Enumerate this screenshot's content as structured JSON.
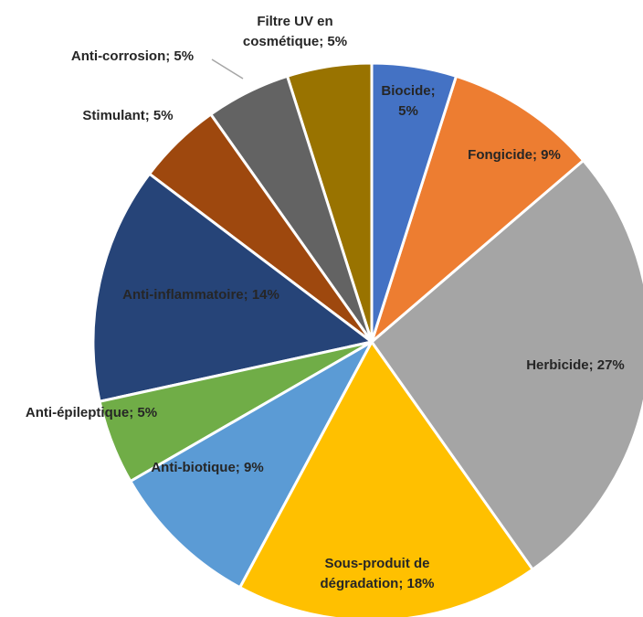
{
  "chart_data": {
    "type": "pie",
    "categories": [
      "Biocide; 5%",
      "Fongicide; 9%",
      "Herbicide; 27%",
      "Sous-produit de dégradation; 18%",
      "Anti-biotique; 9%",
      "Anti-épileptique; 5%",
      "Anti-inflammatoire; 14%",
      "Stimulant; 5%",
      "Anti-corrosion; 5%",
      "Filtre UV en cosmétique; 5%"
    ],
    "values": [
      5,
      9,
      27,
      18,
      9,
      5,
      14,
      5,
      5,
      5
    ],
    "colors": [
      "#4472c4",
      "#ed7d31",
      "#a5a5a5",
      "#ffc000",
      "#5b9bd5",
      "#70ad47",
      "#264478",
      "#9e480e",
      "#636363",
      "#997300"
    ]
  }
}
